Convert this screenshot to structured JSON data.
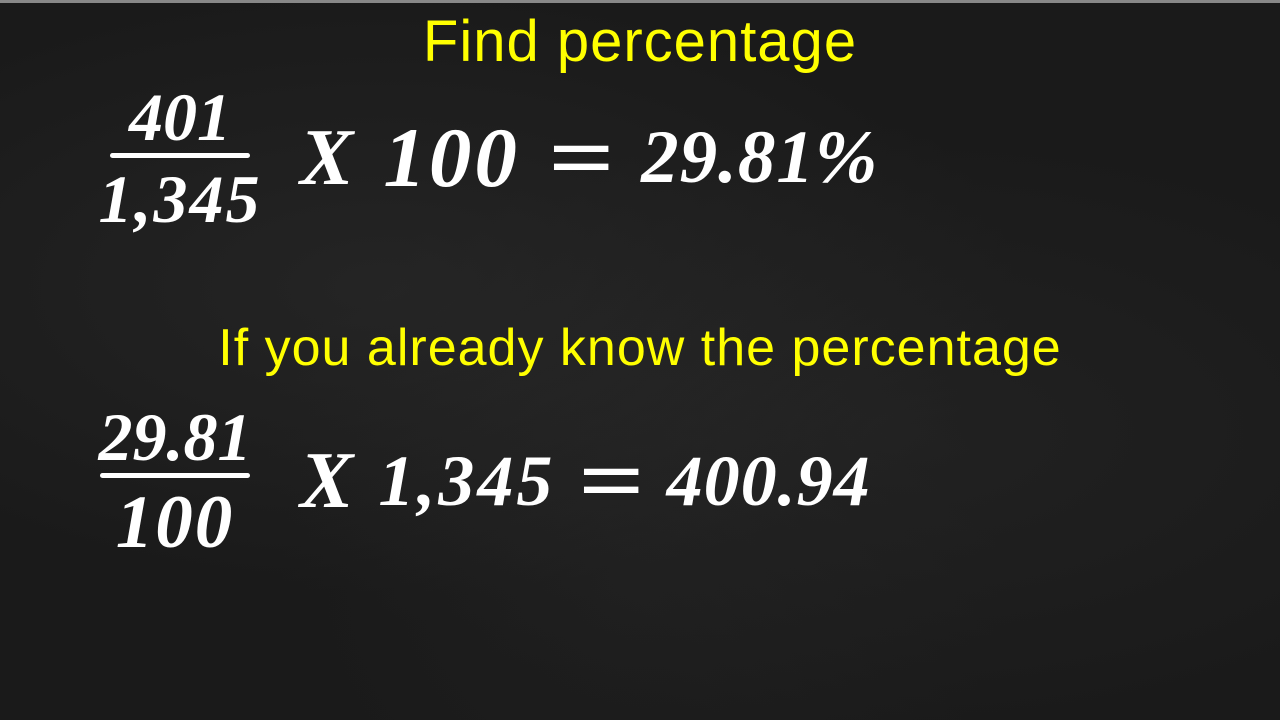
{
  "colors": {
    "title_color": "#ffff00",
    "text_color": "#ffffff",
    "background_color": "#1a1a1a"
  },
  "typography": {
    "title_fontsize": 58,
    "title_font": "Arial",
    "equation_font": "Brush Script MT",
    "equation_fontsize": 72
  },
  "section1": {
    "title": "Find percentage",
    "equation": {
      "numerator": "401",
      "denominator": "1,345",
      "operator": "X",
      "multiplier": "100",
      "equals": "=",
      "result": "29.81%"
    }
  },
  "section2": {
    "title": "If you already know the percentage",
    "equation": {
      "numerator": "29.81",
      "denominator": "100",
      "operator": "X",
      "multiplier": "1,345",
      "equals": "=",
      "result": "400.94"
    }
  }
}
